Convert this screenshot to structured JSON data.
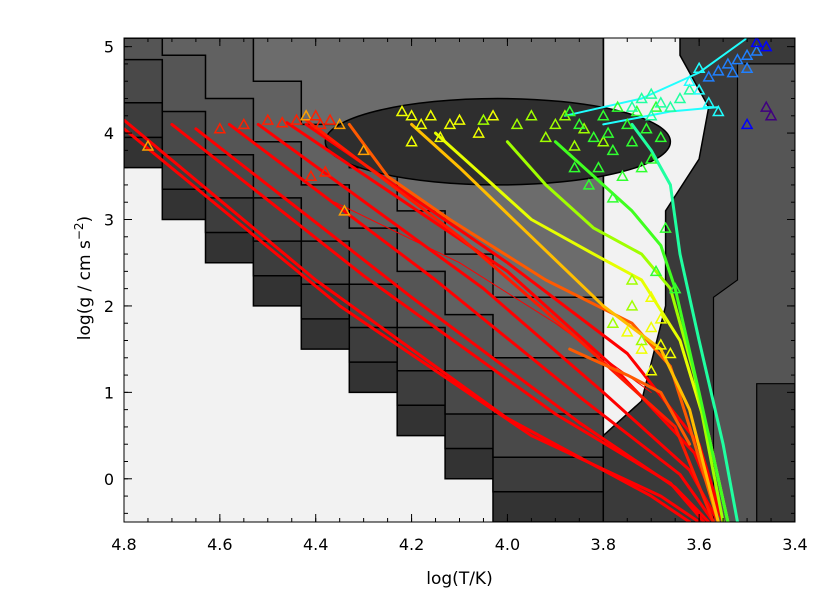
{
  "chart_data": {
    "type": "line",
    "title": "",
    "xlabel": "log(T/K)",
    "ylabel_parts": [
      "log(g / cm s",
      "−2",
      ")"
    ],
    "xlim": [
      4.8,
      3.4
    ],
    "ylim": [
      -0.5,
      5.1
    ],
    "x_ticks": [
      4.8,
      4.6,
      4.4,
      4.2,
      4.0,
      3.8,
      3.6,
      3.4
    ],
    "x_tick_labels": [
      "4.8",
      "4.6",
      "4.4",
      "4.2",
      "4.0",
      "3.8",
      "3.6",
      "3.4"
    ],
    "y_ticks": [
      0,
      1,
      2,
      3,
      4,
      5
    ],
    "y_tick_labels": [
      "0",
      "1",
      "2",
      "3",
      "4",
      "5"
    ],
    "background": {
      "outside_color": "#f2f2f2",
      "contour_levels": [
        {
          "color": "#333333",
          "staircase_offset": 0.0
        },
        {
          "color": "#3d3d3d",
          "staircase_offset": 0.35
        },
        {
          "color": "#494949",
          "staircase_offset": 0.75
        },
        {
          "color": "#555555",
          "staircase_offset": 1.25
        },
        {
          "color": "#616161",
          "staircase_offset": 1.9
        },
        {
          "color": "#6c6c6c",
          "staircase_offset": 2.6
        }
      ],
      "staircase_steps": [
        {
          "x": 4.8,
          "y": 3.6
        },
        {
          "x": 4.72,
          "y": 3.0
        },
        {
          "x": 4.63,
          "y": 2.5
        },
        {
          "x": 4.53,
          "y": 2.0
        },
        {
          "x": 4.43,
          "y": 1.5
        },
        {
          "x": 4.33,
          "y": 1.0
        },
        {
          "x": 4.23,
          "y": 0.5
        },
        {
          "x": 4.13,
          "y": 0.0
        },
        {
          "x": 4.03,
          "y": -0.5
        },
        {
          "x": 3.8,
          "y": -0.5
        }
      ],
      "right_region": [
        {
          "x": 3.8,
          "y": -0.5
        },
        {
          "x": 3.8,
          "y": 0.5
        },
        {
          "x": 3.72,
          "y": 0.9
        },
        {
          "x": 3.67,
          "y": 2.0
        },
        {
          "x": 3.67,
          "y": 3.1
        },
        {
          "x": 3.6,
          "y": 3.7
        },
        {
          "x": 3.58,
          "y": 4.3
        },
        {
          "x": 3.64,
          "y": 4.9
        },
        {
          "x": 3.64,
          "y": 5.1
        },
        {
          "x": 3.4,
          "y": 5.1
        },
        {
          "x": 3.4,
          "y": -0.5
        }
      ],
      "notch": [
        {
          "x": 3.57,
          "y": -0.5
        },
        {
          "x": 3.57,
          "y": 2.1
        },
        {
          "x": 3.52,
          "y": 2.3
        },
        {
          "x": 3.52,
          "y": 4.8
        },
        {
          "x": 3.4,
          "y": 4.8
        },
        {
          "x": 3.4,
          "y": 1.1
        },
        {
          "x": 3.48,
          "y": 1.1
        },
        {
          "x": 3.48,
          "y": -0.5
        }
      ],
      "ellipse": {
        "cx": 4.02,
        "cy": 3.9,
        "rx": 0.36,
        "ry": 0.5
      }
    },
    "series": [
      {
        "color": "#ff0000",
        "width": 3,
        "x": [
          4.8,
          4.4,
          4.0,
          3.7,
          3.62
        ],
        "y": [
          4.15,
          2.3,
          0.7,
          -0.2,
          -0.5
        ]
      },
      {
        "color": "#ff0000",
        "width": 3,
        "x": [
          4.8,
          4.35,
          3.95,
          3.68,
          3.6
        ],
        "y": [
          4.05,
          2.0,
          0.5,
          -0.2,
          -0.5
        ]
      },
      {
        "color": "#ff0000",
        "width": 3,
        "x": [
          4.7,
          4.3,
          3.9,
          3.66,
          3.59
        ],
        "y": [
          4.1,
          2.35,
          0.75,
          -0.05,
          -0.5
        ]
      },
      {
        "color": "#ff0000",
        "width": 3,
        "x": [
          4.65,
          4.2,
          3.85,
          3.65,
          3.58
        ],
        "y": [
          4.05,
          2.1,
          0.65,
          -0.1,
          -0.5
        ]
      },
      {
        "color": "#ff0000",
        "width": 3,
        "x": [
          4.58,
          4.15,
          3.85,
          3.64,
          3.57
        ],
        "y": [
          4.1,
          2.3,
          0.95,
          0.05,
          -0.5
        ]
      },
      {
        "color": "#ff0000",
        "width": 3,
        "x": [
          4.52,
          4.05,
          3.8,
          3.62,
          3.56
        ],
        "y": [
          4.1,
          2.2,
          1.0,
          0.1,
          -0.5
        ]
      },
      {
        "color": "#ff0000",
        "width": 3,
        "x": [
          4.46,
          4.0,
          3.78,
          3.61,
          3.55
        ],
        "y": [
          4.12,
          2.4,
          1.3,
          0.3,
          -0.5
        ]
      },
      {
        "color": "#ff0000",
        "width": 3,
        "x": [
          4.42,
          4.0,
          3.75,
          3.6,
          3.55
        ],
        "y": [
          4.1,
          2.5,
          1.45,
          0.4,
          -0.5
        ]
      },
      {
        "color": "#ff0000",
        "width": 1,
        "x": [
          4.36,
          4.1,
          3.9,
          3.7
        ],
        "y": [
          3.2,
          2.5,
          1.8,
          1.0
        ]
      },
      {
        "color": "#ff1a00",
        "width": 3,
        "x": [
          4.42,
          4.1,
          3.85,
          3.65,
          3.57
        ],
        "y": [
          4.15,
          2.8,
          1.6,
          0.6,
          -0.5
        ]
      },
      {
        "color": "#ff5a00",
        "width": 3,
        "x": [
          4.33,
          4.25,
          4.12,
          3.92,
          3.74,
          3.66,
          3.62,
          3.56
        ],
        "y": [
          4.1,
          3.5,
          3.0,
          2.3,
          1.8,
          1.3,
          0.6,
          -0.5
        ]
      },
      {
        "color": "#ff5a00",
        "width": 3,
        "x": [
          3.87,
          3.75,
          3.68,
          3.64,
          3.62
        ],
        "y": [
          1.5,
          1.2,
          1.0,
          0.6,
          0.4
        ]
      },
      {
        "color": "#ffbe00",
        "width": 3,
        "x": [
          4.2,
          4.1,
          3.95,
          3.8,
          3.68,
          3.62,
          3.56
        ],
        "y": [
          4.1,
          3.6,
          2.8,
          2.0,
          1.5,
          0.8,
          -0.5
        ]
      },
      {
        "color": "#e6ff00",
        "width": 3,
        "x": [
          4.15,
          4.05,
          3.95,
          3.82,
          3.72,
          3.64,
          3.58,
          3.54
        ],
        "y": [
          4.0,
          3.5,
          3.0,
          2.6,
          2.3,
          1.6,
          0.5,
          -0.5
        ]
      },
      {
        "color": "#a0ff00",
        "width": 3,
        "x": [
          4.0,
          3.92,
          3.82,
          3.72,
          3.66,
          3.61,
          3.55
        ],
        "y": [
          3.9,
          3.4,
          2.9,
          2.6,
          2.2,
          1.2,
          -0.5
        ]
      },
      {
        "color": "#40ff20",
        "width": 3,
        "x": [
          3.9,
          3.82,
          3.74,
          3.68,
          3.65,
          3.6,
          3.54
        ],
        "y": [
          3.9,
          3.5,
          3.1,
          2.7,
          2.2,
          1.0,
          -0.5
        ]
      },
      {
        "color": "#20ffa0",
        "width": 3,
        "x": [
          3.74,
          3.7,
          3.66,
          3.64,
          3.6,
          3.55,
          3.52
        ],
        "y": [
          4.1,
          3.8,
          3.4,
          2.6,
          1.6,
          0.4,
          -0.5
        ]
      },
      {
        "color": "#20ffff",
        "width": 2,
        "x": [
          3.88,
          3.72,
          3.6,
          3.5
        ],
        "y": [
          4.2,
          4.4,
          4.7,
          5.1
        ]
      },
      {
        "color": "#20ffff",
        "width": 2,
        "x": [
          3.8,
          3.66,
          3.56
        ],
        "y": [
          4.1,
          4.25,
          4.3
        ]
      }
    ],
    "markers": [
      {
        "color": "#ffa000",
        "points": [
          [
            4.75,
            3.85
          ],
          [
            4.42,
            4.2
          ],
          [
            4.35,
            4.1
          ],
          [
            4.3,
            3.8
          ],
          [
            4.34,
            3.1
          ]
        ]
      },
      {
        "color": "#ff2000",
        "points": [
          [
            4.6,
            4.05
          ],
          [
            4.55,
            4.1
          ],
          [
            4.5,
            4.15
          ],
          [
            4.47,
            4.12
          ],
          [
            4.44,
            4.15
          ],
          [
            4.4,
            4.2
          ],
          [
            4.39,
            4.1
          ],
          [
            4.37,
            4.15
          ],
          [
            4.38,
            3.55
          ],
          [
            4.41,
            3.5
          ]
        ]
      },
      {
        "color": "#f0ff00",
        "points": [
          [
            4.22,
            4.25
          ],
          [
            4.2,
            4.2
          ],
          [
            4.18,
            4.1
          ],
          [
            4.16,
            4.2
          ],
          [
            4.12,
            4.1
          ],
          [
            4.1,
            4.15
          ],
          [
            4.2,
            3.9
          ],
          [
            4.14,
            3.95
          ],
          [
            4.06,
            4.0
          ],
          [
            4.03,
            4.2
          ],
          [
            3.7,
            2.1
          ],
          [
            3.68,
            1.85
          ],
          [
            3.7,
            1.75
          ],
          [
            3.72,
            1.5
          ],
          [
            3.68,
            1.55
          ],
          [
            3.66,
            1.45
          ],
          [
            3.7,
            1.25
          ],
          [
            3.75,
            1.7
          ]
        ]
      },
      {
        "color": "#a0ff00",
        "points": [
          [
            4.05,
            4.15
          ],
          [
            3.98,
            4.1
          ],
          [
            3.95,
            4.2
          ],
          [
            3.92,
            3.95
          ],
          [
            3.9,
            4.1
          ],
          [
            3.88,
            4.2
          ],
          [
            3.86,
            3.85
          ],
          [
            3.84,
            4.05
          ],
          [
            3.8,
            3.9
          ],
          [
            3.78,
            1.8
          ],
          [
            3.74,
            2.0
          ],
          [
            3.72,
            1.6
          ],
          [
            3.74,
            2.3
          ]
        ]
      },
      {
        "color": "#30ff30",
        "points": [
          [
            3.87,
            4.25
          ],
          [
            3.85,
            4.1
          ],
          [
            3.82,
            3.95
          ],
          [
            3.8,
            4.2
          ],
          [
            3.79,
            4.0
          ],
          [
            3.78,
            3.8
          ],
          [
            3.77,
            4.3
          ],
          [
            3.76,
            3.5
          ],
          [
            3.75,
            4.1
          ],
          [
            3.74,
            3.9
          ],
          [
            3.73,
            4.25
          ],
          [
            3.72,
            3.6
          ],
          [
            3.71,
            4.05
          ],
          [
            3.7,
            3.7
          ],
          [
            3.69,
            4.3
          ],
          [
            3.68,
            3.95
          ],
          [
            3.81,
            3.6
          ],
          [
            3.83,
            3.4
          ],
          [
            3.86,
            3.6
          ],
          [
            3.78,
            3.25
          ],
          [
            3.67,
            2.9
          ],
          [
            3.69,
            2.4
          ],
          [
            3.65,
            2.2
          ]
        ]
      },
      {
        "color": "#20ffa0",
        "points": [
          [
            3.72,
            4.4
          ],
          [
            3.7,
            4.45
          ],
          [
            3.68,
            4.35
          ],
          [
            3.66,
            4.3
          ],
          [
            3.64,
            4.4
          ],
          [
            3.62,
            4.5
          ],
          [
            3.7,
            4.2
          ],
          [
            3.74,
            4.3
          ]
        ]
      },
      {
        "color": "#20ffff",
        "points": [
          [
            3.62,
            4.6
          ],
          [
            3.6,
            4.5
          ],
          [
            3.58,
            4.35
          ],
          [
            3.56,
            4.25
          ],
          [
            3.6,
            4.75
          ]
        ]
      },
      {
        "color": "#2080ff",
        "points": [
          [
            3.58,
            4.65
          ],
          [
            3.56,
            4.72
          ],
          [
            3.54,
            4.8
          ],
          [
            3.52,
            4.85
          ],
          [
            3.5,
            4.9
          ],
          [
            3.48,
            4.95
          ],
          [
            3.5,
            4.75
          ],
          [
            3.53,
            4.7
          ]
        ]
      },
      {
        "color": "#0000ff",
        "points": [
          [
            3.46,
            5.0
          ],
          [
            3.48,
            5.05
          ],
          [
            3.5,
            4.1
          ]
        ]
      },
      {
        "color": "#400080",
        "points": [
          [
            3.46,
            4.3
          ],
          [
            3.45,
            4.2
          ]
        ]
      }
    ]
  }
}
